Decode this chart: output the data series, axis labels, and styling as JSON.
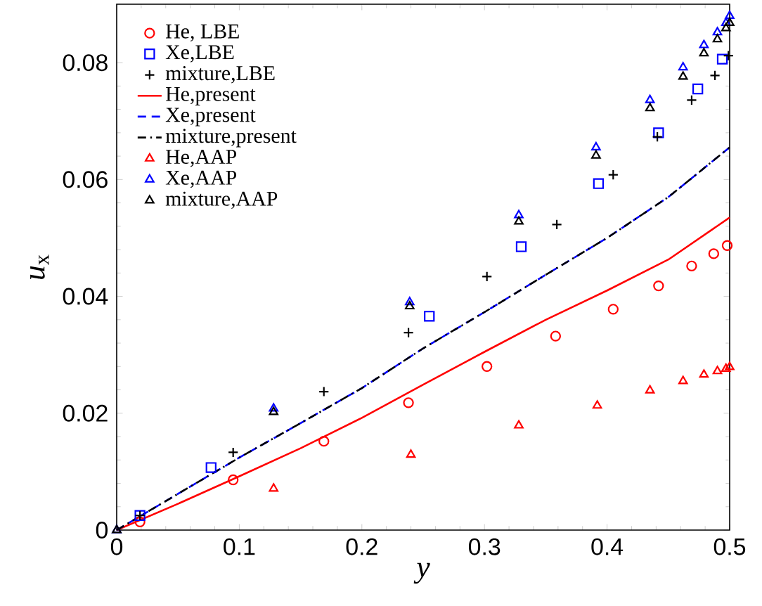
{
  "chart_data": {
    "type": "scatter",
    "xlabel": "*y*",
    "ylabel": "*u*$_{x}$",
    "xlim": [
      0,
      0.5
    ],
    "ylim": [
      0,
      0.09
    ],
    "xticks": [
      0,
      0.1,
      0.2,
      0.3,
      0.4,
      0.5
    ],
    "yticks": [
      0,
      0.02,
      0.04,
      0.06,
      0.08
    ],
    "legend": "top left",
    "grid": false,
    "series": [
      {
        "name": "He, LBE",
        "marker": "circle",
        "color": "#ff0000",
        "x": [
          0.019,
          0.095,
          0.169,
          0.238,
          0.302,
          0.358,
          0.405,
          0.442,
          0.469,
          0.487,
          0.498
        ],
        "values": [
          0.0014,
          0.0086,
          0.0152,
          0.0218,
          0.028,
          0.0332,
          0.0378,
          0.0418,
          0.0452,
          0.0473,
          0.0487
        ]
      },
      {
        "name": "Xe,LBE",
        "marker": "square",
        "color": "#0000ff",
        "x": [
          0.019,
          0.077,
          0.255,
          0.33,
          0.393,
          0.442,
          0.474,
          0.494
        ],
        "values": [
          0.0025,
          0.0107,
          0.0366,
          0.0485,
          0.0593,
          0.068,
          0.0755,
          0.0806
        ]
      },
      {
        "name": "mixture,LBE",
        "marker": "cross",
        "color": "#000000",
        "x": [
          0.019,
          0.095,
          0.169,
          0.238,
          0.302,
          0.359,
          0.405,
          0.441,
          0.469,
          0.488,
          0.499
        ],
        "values": [
          0.0025,
          0.0133,
          0.0237,
          0.0338,
          0.0434,
          0.0523,
          0.0608,
          0.0673,
          0.0736,
          0.0778,
          0.0812
        ]
      },
      {
        "name": "He,present",
        "type": "line",
        "line_style": "solid",
        "color": "#ff0000",
        "x": [
          0,
          0.05,
          0.1,
          0.15,
          0.2,
          0.25,
          0.3,
          0.35,
          0.4,
          0.45,
          0.5
        ],
        "values": [
          0,
          0.0045,
          0.0092,
          0.014,
          0.0192,
          0.0249,
          0.0305,
          0.036,
          0.041,
          0.0463,
          0.0535
        ]
      },
      {
        "name": "Xe,present",
        "type": "line",
        "line_style": "dashed",
        "color": "#0000ff",
        "x": [
          0,
          0.05,
          0.1,
          0.15,
          0.2,
          0.25,
          0.3,
          0.35,
          0.4,
          0.45,
          0.5
        ],
        "values": [
          0,
          0.0062,
          0.0124,
          0.0183,
          0.0243,
          0.0311,
          0.0373,
          0.0437,
          0.05,
          0.057,
          0.0655
        ]
      },
      {
        "name": "mixture,present",
        "type": "line",
        "line_style": "dashdot",
        "color": "#000000",
        "x": [
          0,
          0.05,
          0.1,
          0.15,
          0.2,
          0.25,
          0.3,
          0.35,
          0.4,
          0.45,
          0.5
        ],
        "values": [
          0,
          0.0062,
          0.0124,
          0.0183,
          0.0243,
          0.0311,
          0.0373,
          0.0437,
          0.05,
          0.057,
          0.0655
        ]
      },
      {
        "name": "He,AAP",
        "marker": "triangle",
        "color": "#ff0000",
        "x": [
          0.128,
          0.24,
          0.328,
          0.392,
          0.435,
          0.462,
          0.479,
          0.49,
          0.497,
          0.5
        ],
        "values": [
          0.0071,
          0.0129,
          0.0179,
          0.0213,
          0.0239,
          0.0255,
          0.0266,
          0.0272,
          0.0276,
          0.0279
        ]
      },
      {
        "name": "Xe,AAP",
        "marker": "triangle",
        "color": "#0000ff",
        "x": [
          0,
          0.128,
          0.239,
          0.328,
          0.391,
          0.435,
          0.462,
          0.479,
          0.49,
          0.497,
          0.5
        ],
        "values": [
          0,
          0.0208,
          0.039,
          0.0539,
          0.0655,
          0.0736,
          0.0792,
          0.083,
          0.0852,
          0.0868,
          0.088
        ]
      },
      {
        "name": "mixture,AAP",
        "marker": "triangle",
        "color": "#000000",
        "x": [
          0,
          0.128,
          0.239,
          0.328,
          0.391,
          0.435,
          0.462,
          0.479,
          0.49,
          0.497,
          0.5
        ],
        "values": [
          0,
          0.0202,
          0.0383,
          0.0528,
          0.0641,
          0.0722,
          0.0776,
          0.0816,
          0.084,
          0.0859,
          0.0868
        ]
      }
    ]
  }
}
